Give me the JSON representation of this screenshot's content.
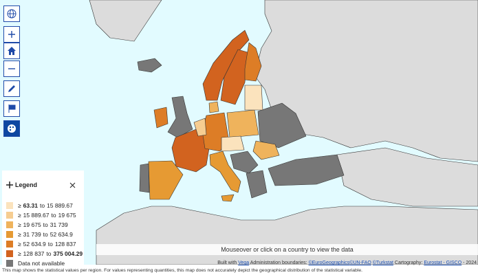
{
  "legend": {
    "title": "Legend",
    "symbol": "≥",
    "connector": "to",
    "classes": [
      {
        "min": "63.31",
        "max": "15 889.67",
        "color": "#fbe3bd"
      },
      {
        "min": "15 889.67",
        "max": "19 675",
        "color": "#f6cd91"
      },
      {
        "min": "19 675",
        "max": "31 739",
        "color": "#efb35c"
      },
      {
        "min": "31 739",
        "max": "52 634.9",
        "color": "#e69a33"
      },
      {
        "min": "52 634.9",
        "max": "128 837",
        "color": "#dd7d26"
      },
      {
        "min": "128 837",
        "max": "375 004.29",
        "color": "#d2631f"
      }
    ],
    "no_data": {
      "label": "Data not available",
      "color": "#777777"
    }
  },
  "hint": "Mouseover or click on a country to view the data",
  "attribution": {
    "built_with": "Built with",
    "vega": "Vega",
    "boundaries": "Administration boundaries:",
    "eurogeographics": "©EuroGeographics",
    "unfao": "©UN-FAO",
    "turkstat": "©Turkstat",
    "cartography": "Cartography:",
    "gisco": "Eurostat - GISCO",
    "year": "- 2024"
  },
  "footnote": "This map shows the statistical values per region. For values representing quantities, this map does not accurately depict the geographical distribution of the statistical variable."
}
